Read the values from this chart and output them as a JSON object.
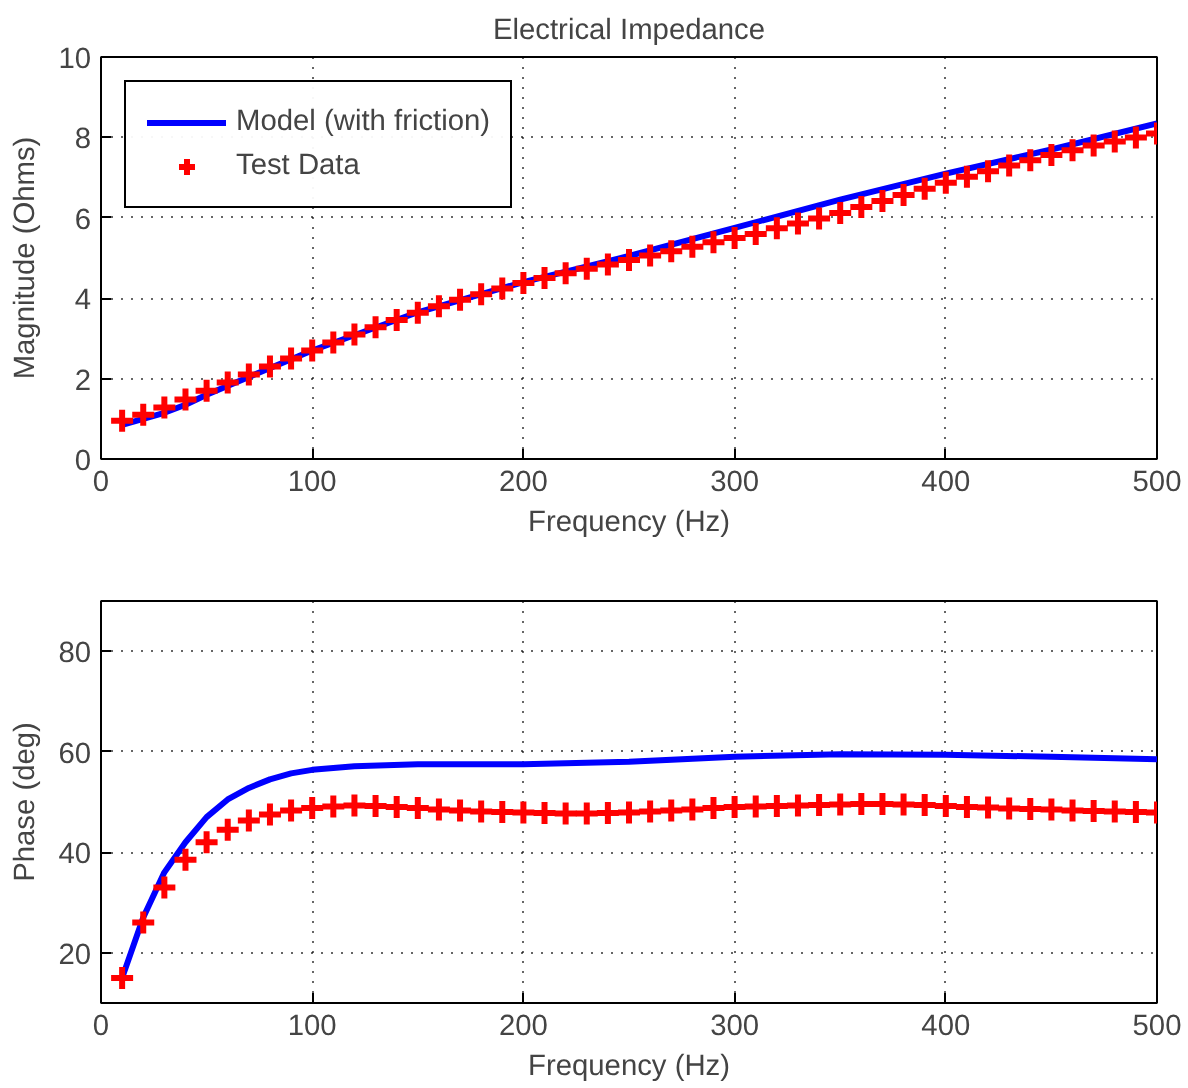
{
  "chart_data": [
    {
      "type": "line",
      "title": "Electrical Impedance",
      "xlabel": "Frequency (Hz)",
      "ylabel": "Magnitude (Ohms)",
      "xlim": [
        0,
        500
      ],
      "xticks": [
        0,
        100,
        200,
        300,
        400,
        500
      ],
      "ylim": [
        0,
        10
      ],
      "yticks": [
        0,
        2,
        4,
        6,
        8,
        10
      ],
      "grid": true,
      "legend": "top left",
      "series": [
        {
          "name": "Model (with friction)",
          "color": "#0000ff",
          "line_style": "solid",
          "marker": "none",
          "x": [
            10,
            20,
            30,
            40,
            50,
            75,
            100,
            150,
            200,
            250,
            300,
            350,
            400,
            450,
            500
          ],
          "values": [
            0.85,
            1.0,
            1.15,
            1.35,
            1.6,
            2.15,
            2.7,
            3.65,
            4.4,
            5.05,
            5.75,
            6.45,
            7.1,
            7.7,
            8.35
          ]
        },
        {
          "name": "Test Data",
          "type": "scatter",
          "color": "#ff0000",
          "marker": "cross",
          "x": [
            10,
            20,
            30,
            40,
            50,
            60,
            70,
            80,
            90,
            100,
            110,
            120,
            130,
            140,
            150,
            160,
            170,
            180,
            190,
            200,
            210,
            220,
            230,
            240,
            250,
            260,
            270,
            280,
            290,
            300,
            310,
            320,
            330,
            340,
            350,
            360,
            370,
            380,
            390,
            400,
            410,
            420,
            430,
            440,
            450,
            460,
            470,
            480,
            490,
            500
          ],
          "values": [
            0.95,
            1.1,
            1.28,
            1.48,
            1.7,
            1.9,
            2.1,
            2.3,
            2.5,
            2.7,
            2.9,
            3.1,
            3.28,
            3.46,
            3.64,
            3.8,
            3.96,
            4.1,
            4.24,
            4.38,
            4.5,
            4.62,
            4.73,
            4.84,
            4.95,
            5.06,
            5.17,
            5.28,
            5.39,
            5.5,
            5.6,
            5.74,
            5.86,
            5.98,
            6.12,
            6.27,
            6.42,
            6.57,
            6.72,
            6.87,
            7.02,
            7.16,
            7.3,
            7.43,
            7.56,
            7.68,
            7.8,
            7.9,
            8.0,
            8.1
          ]
        }
      ]
    },
    {
      "type": "line",
      "xlabel": "Frequency (Hz)",
      "ylabel": "Phase (deg)",
      "xlim": [
        0,
        500
      ],
      "xticks": [
        0,
        100,
        200,
        300,
        400,
        500
      ],
      "ylim": [
        10,
        90
      ],
      "yticks": [
        20,
        40,
        60,
        80
      ],
      "grid": true,
      "series": [
        {
          "color": "#0000ff",
          "line_style": "solid",
          "marker": "none",
          "x": [
            10,
            20,
            30,
            40,
            50,
            60,
            70,
            80,
            90,
            100,
            120,
            150,
            200,
            250,
            300,
            350,
            400,
            450,
            500
          ],
          "values": [
            15,
            27,
            36,
            42,
            47,
            50.5,
            52.8,
            54.5,
            55.7,
            56.4,
            57.1,
            57.5,
            57.5,
            58,
            59,
            59.5,
            59.4,
            59,
            58.5
          ]
        },
        {
          "type": "scatter",
          "color": "#ff0000",
          "marker": "cross",
          "x": [
            10,
            20,
            30,
            40,
            50,
            60,
            70,
            80,
            90,
            100,
            110,
            120,
            130,
            140,
            150,
            160,
            170,
            180,
            190,
            200,
            210,
            220,
            230,
            240,
            250,
            260,
            270,
            280,
            290,
            300,
            310,
            320,
            330,
            340,
            350,
            360,
            370,
            380,
            390,
            400,
            410,
            420,
            430,
            440,
            450,
            460,
            470,
            480,
            490,
            500
          ],
          "values": [
            15,
            26,
            33,
            38.5,
            42,
            44.5,
            46.3,
            47.5,
            48.3,
            48.8,
            49.1,
            49.3,
            49.2,
            49.0,
            48.8,
            48.5,
            48.3,
            48.1,
            48.0,
            47.9,
            47.8,
            47.7,
            47.7,
            47.8,
            47.9,
            48.1,
            48.3,
            48.5,
            48.8,
            49.0,
            49.1,
            49.2,
            49.3,
            49.4,
            49.5,
            49.6,
            49.6,
            49.5,
            49.4,
            49.2,
            49.0,
            48.9,
            48.7,
            48.6,
            48.5,
            48.3,
            48.2,
            48.1,
            48.0,
            47.9
          ]
        }
      ]
    }
  ]
}
